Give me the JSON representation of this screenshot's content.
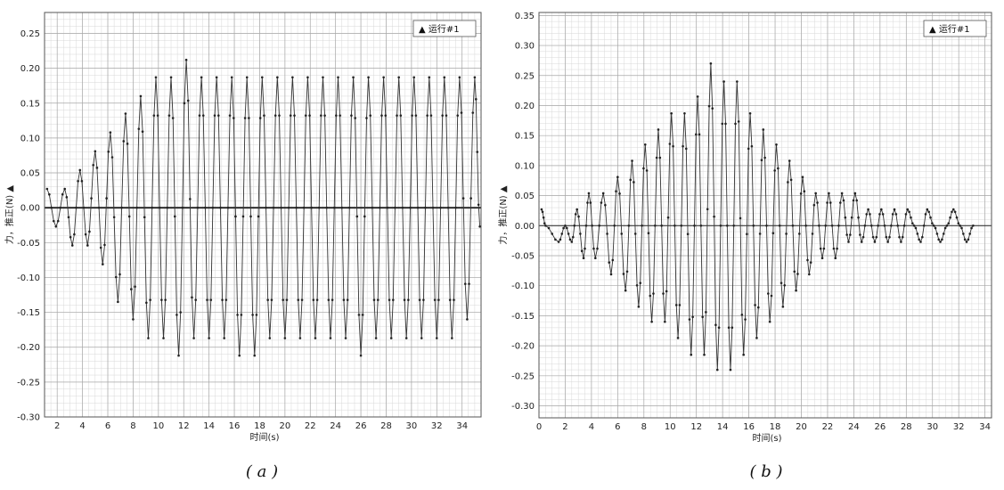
{
  "chart_data": [
    {
      "type": "line",
      "caption": "( a )",
      "xlabel": "时间(s)",
      "ylabel": "力，推正(N) ▲",
      "legend": {
        "label": "▲ 运行#1",
        "placement": "top-right"
      },
      "xlim": [
        1,
        35.5
      ],
      "ylim": [
        -0.3,
        0.28
      ],
      "xticks": [
        2,
        4,
        6,
        8,
        10,
        12,
        14,
        16,
        18,
        20,
        22,
        24,
        26,
        28,
        30,
        32,
        34
      ],
      "yticks": [
        0.25,
        0.2,
        0.15,
        0.1,
        0.05,
        0.0,
        -0.05,
        -0.1,
        -0.15,
        -0.2,
        -0.25,
        -0.3
      ],
      "ytick_labels": [
        "0.25",
        "0.20",
        "0.15",
        "0.10",
        "0.05",
        "0.00",
        "-0.05",
        "-0.10",
        "-0.15",
        "-0.20",
        "-0.25",
        "-0.30"
      ],
      "grid": true,
      "series": [
        {
          "name": "运行#1",
          "cycle_period_s": 0.62,
          "peaks": [
            [
              1.2,
              0.027
            ],
            [
              1.9,
              -0.027
            ],
            [
              2.6,
              0.027
            ],
            [
              3.2,
              -0.054
            ],
            [
              3.8,
              0.054
            ],
            [
              4.4,
              -0.054
            ],
            [
              5.0,
              0.081
            ],
            [
              5.6,
              -0.081
            ],
            [
              6.2,
              0.108
            ],
            [
              6.8,
              -0.135
            ],
            [
              7.4,
              0.135
            ],
            [
              8.0,
              -0.16
            ],
            [
              8.6,
              0.16
            ],
            [
              9.2,
              -0.187
            ],
            [
              9.8,
              0.187
            ],
            [
              10.4,
              -0.187
            ],
            [
              11.0,
              0.187
            ],
            [
              11.6,
              -0.212
            ],
            [
              12.2,
              0.212
            ],
            [
              12.8,
              -0.187
            ],
            [
              13.4,
              0.187
            ],
            [
              14.0,
              -0.187
            ],
            [
              14.6,
              0.187
            ],
            [
              15.2,
              -0.187
            ],
            [
              15.8,
              0.187
            ],
            [
              16.4,
              -0.212
            ],
            [
              17.0,
              0.187
            ],
            [
              17.6,
              -0.212
            ],
            [
              18.2,
              0.187
            ],
            [
              18.8,
              -0.187
            ],
            [
              19.4,
              0.187
            ],
            [
              20.0,
              -0.187
            ],
            [
              20.6,
              0.187
            ],
            [
              21.2,
              -0.187
            ],
            [
              21.8,
              0.187
            ],
            [
              22.4,
              -0.187
            ],
            [
              23.0,
              0.187
            ],
            [
              23.6,
              -0.187
            ],
            [
              24.2,
              0.187
            ],
            [
              24.8,
              -0.187
            ],
            [
              25.4,
              0.187
            ],
            [
              26.0,
              -0.212
            ],
            [
              26.6,
              0.187
            ],
            [
              27.2,
              -0.187
            ],
            [
              27.8,
              0.187
            ],
            [
              28.4,
              -0.187
            ],
            [
              29.0,
              0.187
            ],
            [
              29.6,
              -0.187
            ],
            [
              30.2,
              0.187
            ],
            [
              30.8,
              -0.187
            ],
            [
              31.4,
              0.187
            ],
            [
              32.0,
              -0.187
            ],
            [
              32.6,
              0.187
            ],
            [
              33.2,
              -0.187
            ],
            [
              33.8,
              0.187
            ],
            [
              34.4,
              -0.16
            ],
            [
              35.0,
              0.187
            ],
            [
              35.4,
              -0.027
            ]
          ]
        }
      ]
    },
    {
      "type": "line",
      "caption": "( b )",
      "xlabel": "时间(s)",
      "ylabel": "力，推正(N) ▲",
      "legend": {
        "label": "▲ 运行#1",
        "placement": "top-right"
      },
      "xlim": [
        0,
        34.5
      ],
      "ylim": [
        -0.32,
        0.355
      ],
      "xticks": [
        0,
        2,
        4,
        6,
        8,
        10,
        12,
        14,
        16,
        18,
        20,
        22,
        24,
        26,
        28,
        30,
        32,
        34
      ],
      "yticks": [
        0.35,
        0.3,
        0.25,
        0.2,
        0.15,
        0.1,
        0.05,
        0.0,
        -0.05,
        -0.1,
        -0.15,
        -0.2,
        -0.25,
        -0.3
      ],
      "ytick_labels": [
        "0.35",
        "0.30",
        "0.25",
        "0.20",
        "0.15",
        "0.10",
        "0.05",
        "0.00",
        "-0.05",
        "-0.10",
        "-0.15",
        "-0.20",
        "-0.25",
        "-0.30"
      ],
      "grid": true,
      "series": [
        {
          "name": "运行#1",
          "peaks": [
            [
              0.2,
              0.027
            ],
            [
              0.5,
              0.0
            ],
            [
              1.5,
              -0.027
            ],
            [
              2.0,
              0.0
            ],
            [
              2.5,
              -0.027
            ],
            [
              2.9,
              0.027
            ],
            [
              3.4,
              -0.054
            ],
            [
              3.8,
              0.054
            ],
            [
              4.3,
              -0.054
            ],
            [
              4.9,
              0.054
            ],
            [
              5.5,
              -0.081
            ],
            [
              6.0,
              0.081
            ],
            [
              6.6,
              -0.108
            ],
            [
              7.1,
              0.108
            ],
            [
              7.6,
              -0.135
            ],
            [
              8.1,
              0.135
            ],
            [
              8.6,
              -0.16
            ],
            [
              9.1,
              0.16
            ],
            [
              9.6,
              -0.16
            ],
            [
              10.1,
              0.187
            ],
            [
              10.6,
              -0.187
            ],
            [
              11.1,
              0.187
            ],
            [
              11.6,
              -0.215
            ],
            [
              12.1,
              0.215
            ],
            [
              12.6,
              -0.215
            ],
            [
              13.1,
              0.27
            ],
            [
              13.6,
              -0.24
            ],
            [
              14.1,
              0.24
            ],
            [
              14.6,
              -0.24
            ],
            [
              15.1,
              0.24
            ],
            [
              15.6,
              -0.215
            ],
            [
              16.1,
              0.187
            ],
            [
              16.6,
              -0.187
            ],
            [
              17.1,
              0.16
            ],
            [
              17.6,
              -0.16
            ],
            [
              18.1,
              0.135
            ],
            [
              18.6,
              -0.135
            ],
            [
              19.1,
              0.108
            ],
            [
              19.6,
              -0.108
            ],
            [
              20.1,
              0.081
            ],
            [
              20.6,
              -0.081
            ],
            [
              21.1,
              0.054
            ],
            [
              21.6,
              -0.054
            ],
            [
              22.1,
              0.054
            ],
            [
              22.6,
              -0.054
            ],
            [
              23.1,
              0.054
            ],
            [
              23.6,
              -0.027
            ],
            [
              24.1,
              0.054
            ],
            [
              24.6,
              -0.027
            ],
            [
              25.1,
              0.027
            ],
            [
              25.6,
              -0.027
            ],
            [
              26.1,
              0.027
            ],
            [
              26.6,
              -0.027
            ],
            [
              27.1,
              0.027
            ],
            [
              27.6,
              -0.027
            ],
            [
              28.1,
              0.027
            ],
            [
              28.6,
              0.0
            ],
            [
              29.1,
              -0.027
            ],
            [
              29.6,
              0.027
            ],
            [
              30.1,
              0.0
            ],
            [
              30.6,
              -0.027
            ],
            [
              31.1,
              0.0
            ],
            [
              31.6,
              0.027
            ],
            [
              32.1,
              0.0
            ],
            [
              32.6,
              -0.027
            ],
            [
              33.1,
              0.0
            ]
          ]
        }
      ]
    }
  ]
}
